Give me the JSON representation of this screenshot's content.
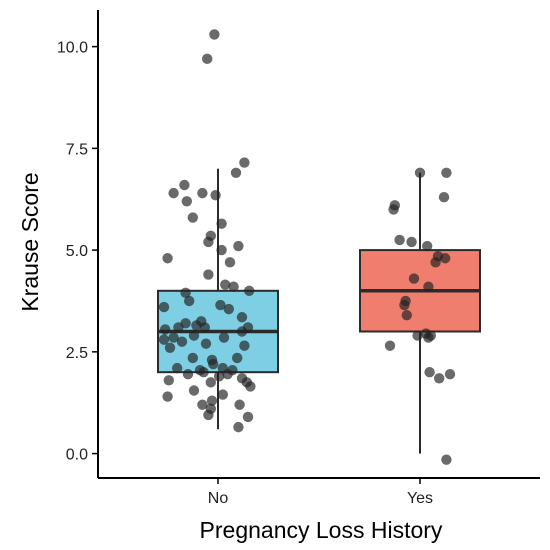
{
  "chart_data": {
    "type": "box",
    "title": "",
    "xlabel": "Pregnancy Loss History",
    "ylabel": "Krause Score",
    "ylim": [
      -0.6,
      10.9
    ],
    "yticks": [
      0.0,
      2.5,
      5.0,
      7.5,
      10.0
    ],
    "ytick_labels": [
      "0.0",
      "2.5",
      "5.0",
      "7.5",
      "10.0"
    ],
    "grid": false,
    "legend": "none",
    "categories": [
      "No",
      "Yes"
    ],
    "boxes": [
      {
        "category": "No",
        "color": "#7ecfe3",
        "whisker_low": 0.6,
        "q1": 2.0,
        "median": 3.0,
        "q3": 4.0,
        "whisker_high": 7.0,
        "outliers": [
          9.7,
          10.3
        ]
      },
      {
        "category": "Yes",
        "color": "#f07e6e",
        "whisker_low": 0.0,
        "q1": 3.0,
        "median": 4.0,
        "q3": 5.0,
        "whisker_high": 6.9,
        "outliers": [
          -0.2
        ]
      }
    ],
    "points": {
      "No": [
        {
          "x": -0.03,
          "y": 10.3
        },
        {
          "x": -0.09,
          "y": 9.7
        },
        {
          "x": 0.22,
          "y": 7.15
        },
        {
          "x": 0.15,
          "y": 6.9
        },
        {
          "x": -0.37,
          "y": 6.4
        },
        {
          "x": -0.28,
          "y": 6.6
        },
        {
          "x": -0.13,
          "y": 6.4
        },
        {
          "x": -0.02,
          "y": 6.35
        },
        {
          "x": -0.26,
          "y": 6.2
        },
        {
          "x": -0.21,
          "y": 5.8
        },
        {
          "x": 0.03,
          "y": 5.65
        },
        {
          "x": -0.06,
          "y": 5.35
        },
        {
          "x": 0.17,
          "y": 5.1
        },
        {
          "x": 0.03,
          "y": 5.0
        },
        {
          "x": -0.08,
          "y": 5.2
        },
        {
          "x": -0.42,
          "y": 4.8
        },
        {
          "x": 0.1,
          "y": 4.7
        },
        {
          "x": -0.08,
          "y": 4.4
        },
        {
          "x": 0.06,
          "y": 4.15
        },
        {
          "x": 0.13,
          "y": 4.1
        },
        {
          "x": 0.26,
          "y": 4.0
        },
        {
          "x": -0.27,
          "y": 3.95
        },
        {
          "x": -0.24,
          "y": 3.75
        },
        {
          "x": 0.02,
          "y": 3.65
        },
        {
          "x": 0.09,
          "y": 3.55
        },
        {
          "x": -0.45,
          "y": 3.6
        },
        {
          "x": 0.2,
          "y": 3.35
        },
        {
          "x": -0.27,
          "y": 3.2
        },
        {
          "x": -0.18,
          "y": 3.15
        },
        {
          "x": -0.14,
          "y": 3.25
        },
        {
          "x": -0.44,
          "y": 3.05
        },
        {
          "x": -0.33,
          "y": 3.1
        },
        {
          "x": -0.11,
          "y": 3.1
        },
        {
          "x": 0.25,
          "y": 3.1
        },
        {
          "x": 0.2,
          "y": 3.0
        },
        {
          "x": -0.37,
          "y": 2.85
        },
        {
          "x": -0.45,
          "y": 2.8
        },
        {
          "x": -0.3,
          "y": 2.75
        },
        {
          "x": -0.2,
          "y": 2.9
        },
        {
          "x": 0.05,
          "y": 2.85
        },
        {
          "x": -0.4,
          "y": 2.6
        },
        {
          "x": -0.1,
          "y": 2.7
        },
        {
          "x": 0.22,
          "y": 2.65
        },
        {
          "x": -0.21,
          "y": 2.35
        },
        {
          "x": -0.05,
          "y": 2.3
        },
        {
          "x": 0.16,
          "y": 2.35
        },
        {
          "x": -0.34,
          "y": 2.1
        },
        {
          "x": -0.15,
          "y": 2.05
        },
        {
          "x": -0.04,
          "y": 2.2
        },
        {
          "x": 0.04,
          "y": 2.1
        },
        {
          "x": 0.12,
          "y": 2.05
        },
        {
          "x": -0.25,
          "y": 1.95
        },
        {
          "x": -0.12,
          "y": 2.0
        },
        {
          "x": 0.08,
          "y": 1.95
        },
        {
          "x": 0.2,
          "y": 1.85
        },
        {
          "x": -0.41,
          "y": 1.8
        },
        {
          "x": -0.06,
          "y": 1.75
        },
        {
          "x": 0.01,
          "y": 1.9
        },
        {
          "x": 0.24,
          "y": 1.75
        },
        {
          "x": 0.27,
          "y": 1.65
        },
        {
          "x": 0.04,
          "y": 1.45
        },
        {
          "x": -0.2,
          "y": 1.55
        },
        {
          "x": -0.42,
          "y": 1.4
        },
        {
          "x": -0.05,
          "y": 1.3
        },
        {
          "x": 0.18,
          "y": 1.2
        },
        {
          "x": -0.13,
          "y": 1.2
        },
        {
          "x": -0.06,
          "y": 1.1
        },
        {
          "x": -0.08,
          "y": 0.95
        },
        {
          "x": 0.25,
          "y": 0.9
        },
        {
          "x": 0.17,
          "y": 0.65
        }
      ],
      "Yes": [
        {
          "x": 0.0,
          "y": 6.9
        },
        {
          "x": 0.22,
          "y": 6.9
        },
        {
          "x": -0.21,
          "y": 6.1
        },
        {
          "x": -0.22,
          "y": 6.0
        },
        {
          "x": 0.2,
          "y": 6.3
        },
        {
          "x": -0.17,
          "y": 5.25
        },
        {
          "x": -0.07,
          "y": 5.2
        },
        {
          "x": 0.06,
          "y": 5.1
        },
        {
          "x": 0.15,
          "y": 4.85
        },
        {
          "x": 0.21,
          "y": 4.8
        },
        {
          "x": 0.13,
          "y": 4.7
        },
        {
          "x": -0.05,
          "y": 4.3
        },
        {
          "x": 0.07,
          "y": 4.1
        },
        {
          "x": -0.12,
          "y": 3.75
        },
        {
          "x": -0.13,
          "y": 3.65
        },
        {
          "x": -0.11,
          "y": 3.4
        },
        {
          "x": 0.05,
          "y": 2.95
        },
        {
          "x": -0.02,
          "y": 2.9
        },
        {
          "x": 0.09,
          "y": 2.9
        },
        {
          "x": 0.07,
          "y": 2.85
        },
        {
          "x": -0.25,
          "y": 2.65
        },
        {
          "x": 0.08,
          "y": 2.0
        },
        {
          "x": 0.25,
          "y": 1.95
        },
        {
          "x": 0.16,
          "y": 1.85
        },
        {
          "x": 0.22,
          "y": -0.15
        }
      ]
    }
  }
}
